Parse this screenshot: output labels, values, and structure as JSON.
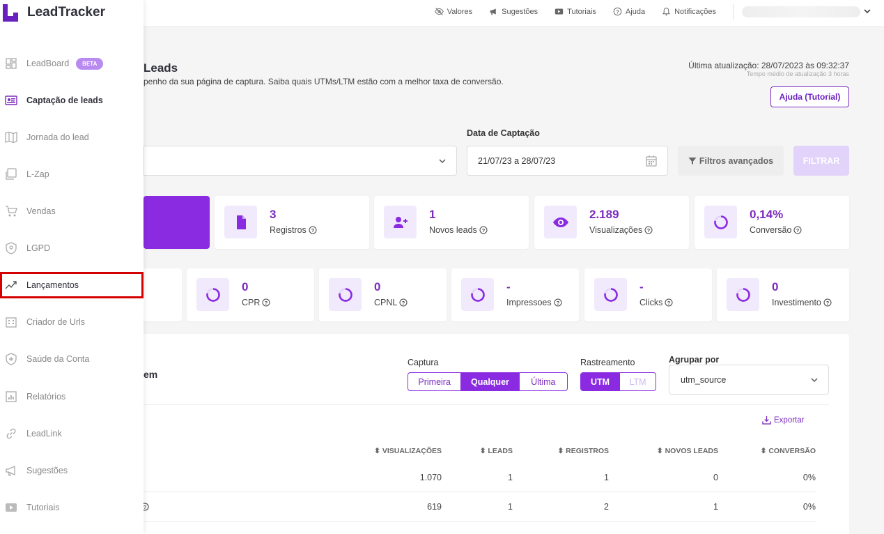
{
  "brand": {
    "name": "LeadTracker",
    "accent": "#8a2be2"
  },
  "topnav": [
    {
      "label": "Valores",
      "icon": "eye-slash-icon"
    },
    {
      "label": "Sugestões",
      "icon": "megaphone-icon"
    },
    {
      "label": "Tutoriais",
      "icon": "video-icon"
    },
    {
      "label": "Ajuda",
      "icon": "question-icon"
    },
    {
      "label": "Notificações",
      "icon": "bell-icon"
    }
  ],
  "sidebar": {
    "items": [
      {
        "label": "LeadBoard",
        "badge": "BETA",
        "icon": "dashboard-icon"
      },
      {
        "label": "Captação de leads",
        "icon": "capture-icon",
        "active": true
      },
      {
        "label": "Jornada do lead",
        "icon": "map-icon"
      },
      {
        "label": "L-Zap",
        "icon": "chat-icon"
      },
      {
        "label": "Vendas",
        "icon": "cart-icon"
      },
      {
        "label": "LGPD",
        "icon": "shield-icon"
      },
      {
        "label": "Lançamentos",
        "icon": "trend-icon",
        "highlighted": true
      },
      {
        "label": "Criador de Urls",
        "icon": "building-icon"
      },
      {
        "label": "Saúde da Conta",
        "icon": "health-icon"
      },
      {
        "label": "Relatórios",
        "icon": "report-icon"
      },
      {
        "label": "LeadLink",
        "icon": "link-icon"
      },
      {
        "label": "Sugestões",
        "icon": "megaphone-icon"
      },
      {
        "label": "Tutoriais",
        "icon": "video-icon"
      }
    ]
  },
  "header": {
    "title": "Leads",
    "subtitle": "penho da sua página de captura. Saiba quais UTMs/LTM estão com a melhor taxa de conversão.",
    "update": "Última atualização: 28/07/2023 às 09:32:37",
    "update_sub": "Tempo médio de atualização 3 horas",
    "help_button": "Ajuda (Tutorial)"
  },
  "filters": {
    "date_label": "Data de Captação",
    "date_value": "21/07/23 a 28/07/23",
    "advanced": "Filtros avançados",
    "apply": "FILTRAR"
  },
  "cards_row1": [
    {
      "value": "3",
      "label": "Registros",
      "icon": "file-icon"
    },
    {
      "value": "1",
      "label": "Novos leads",
      "icon": "user-plus-icon"
    },
    {
      "value": "2.189",
      "label": "Visualizações",
      "icon": "eye-icon"
    },
    {
      "value": "0,14%",
      "label": "Conversão",
      "icon": "ring-icon"
    }
  ],
  "cards_row2": [
    {
      "value": "0",
      "label": "CPR"
    },
    {
      "value": "0",
      "label": "CPNL"
    },
    {
      "value": "-",
      "label": "Impressoes"
    },
    {
      "value": "-",
      "label": "Clicks"
    },
    {
      "value": "0",
      "label": "Investimento"
    }
  ],
  "panel": {
    "title": "em",
    "captura_label": "Captura",
    "captura_options": [
      "Primeira",
      "Qualquer",
      "Última"
    ],
    "rastreamento_label": "Rastreamento",
    "rastreamento_options": [
      "UTM",
      "LTM"
    ],
    "agrupar_label": "Agrupar por",
    "agrupar_value": "utm_source",
    "export": "Exportar",
    "columns": [
      "VISUALIZAÇÕES",
      "LEADS",
      "REGISTROS",
      "NOVOS LEADS",
      "CONVERSÃO"
    ],
    "rows": [
      [
        "1.070",
        "1",
        "1",
        "0",
        "0%"
      ],
      [
        "619",
        "1",
        "2",
        "1",
        "0%"
      ]
    ]
  }
}
